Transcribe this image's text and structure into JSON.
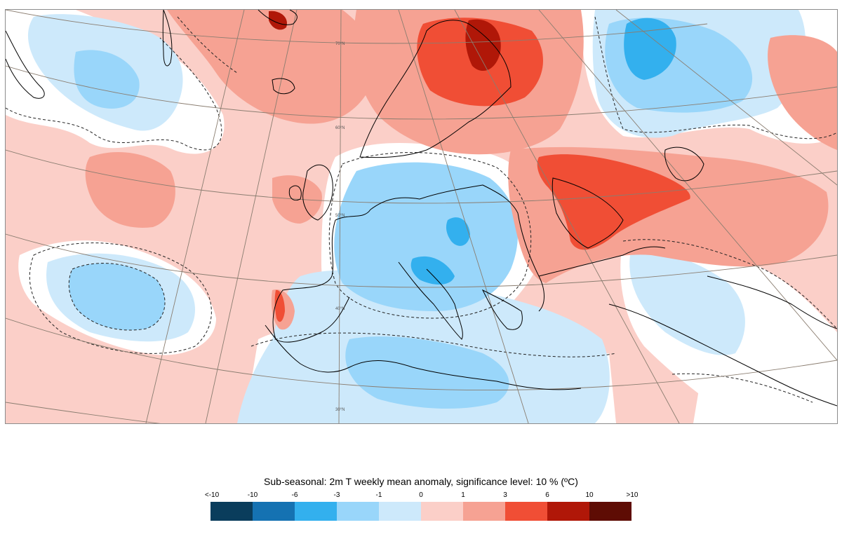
{
  "map": {
    "lat_labels": [
      "70°N",
      "60°N",
      "50°N",
      "40°N",
      "30°N"
    ]
  },
  "legend": {
    "title": "Sub-seasonal: 2m T weekly mean anomaly, significance level: 10 % (ºC)",
    "tick_labels": [
      "<-10",
      "-10",
      "-6",
      "-3",
      "-1",
      "0",
      "1",
      "3",
      "6",
      "10",
      ">10"
    ],
    "colors": [
      "#0a3d5c",
      "#1572b2",
      "#33b0ee",
      "#99d6fa",
      "#cde9fb",
      "#fbcfc8",
      "#f6a293",
      "#f04e35",
      "#b01708",
      "#5e0c04"
    ]
  }
}
